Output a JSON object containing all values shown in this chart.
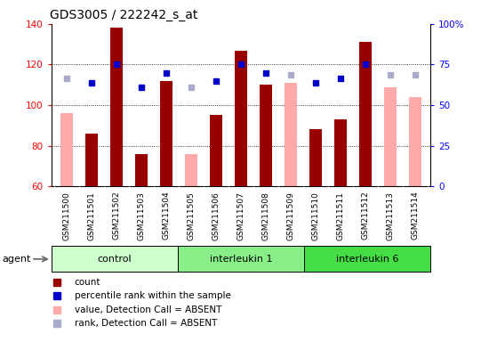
{
  "title": "GDS3005 / 222242_s_at",
  "samples": [
    "GSM211500",
    "GSM211501",
    "GSM211502",
    "GSM211503",
    "GSM211504",
    "GSM211505",
    "GSM211506",
    "GSM211507",
    "GSM211508",
    "GSM211509",
    "GSM211510",
    "GSM211511",
    "GSM211512",
    "GSM211513",
    "GSM211514"
  ],
  "groups": {
    "control": [
      0,
      1,
      2,
      3,
      4
    ],
    "interleukin 1": [
      5,
      6,
      7,
      8,
      9
    ],
    "interleukin 6": [
      10,
      11,
      12,
      13,
      14
    ]
  },
  "group_colors": {
    "control": "#ccffcc",
    "interleukin 1": "#88ee88",
    "interleukin 6": "#44dd44"
  },
  "count": [
    null,
    86,
    138,
    76,
    112,
    null,
    95,
    127,
    110,
    null,
    88,
    93,
    131,
    null,
    null
  ],
  "count_absent": [
    96,
    null,
    null,
    null,
    null,
    76,
    null,
    null,
    null,
    111,
    null,
    null,
    null,
    109,
    104
  ],
  "percentile_rank": [
    null,
    111,
    120,
    109,
    116,
    null,
    112,
    120,
    116,
    null,
    111,
    113,
    120,
    null,
    null
  ],
  "rank_absent": [
    113,
    null,
    null,
    null,
    null,
    109,
    null,
    null,
    null,
    115,
    null,
    null,
    null,
    115,
    115
  ],
  "ylim_left": [
    60,
    140
  ],
  "ylim_right": [
    0,
    100
  ],
  "yticks_left": [
    60,
    80,
    100,
    120,
    140
  ],
  "yticks_right": [
    0,
    25,
    50,
    75,
    100
  ],
  "gridlines": [
    80,
    100,
    120
  ],
  "bar_color": "#990000",
  "bar_absent_color": "#ffaaaa",
  "dot_color": "#0000cc",
  "dot_absent_color": "#aaaacc",
  "agent_label": "agent",
  "gray_tick_bg": "#cccccc"
}
